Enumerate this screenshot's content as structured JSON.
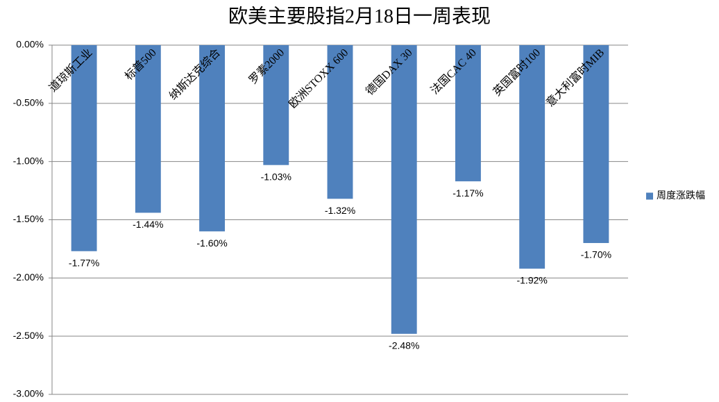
{
  "chart_data": {
    "type": "bar",
    "title": "欧美主要股指2月18日一周表现",
    "categories": [
      "道琼斯工业",
      "标普500",
      "纳斯达克综合",
      "罗素2000",
      "欧洲STOXX 600",
      "德国DAX 30",
      "法国CAC 40",
      "英国富时100",
      "意大利富时MIB"
    ],
    "series": [
      {
        "name": "周度涨跌幅",
        "color": "#4f81bd",
        "values": [
          -1.77,
          -1.44,
          -1.6,
          -1.03,
          -1.32,
          -2.48,
          -1.17,
          -1.92,
          -1.7
        ],
        "value_labels": [
          "-1.77%",
          "-1.44%",
          "-1.60%",
          "-1.03%",
          "-1.32%",
          "-2.48%",
          "-1.17%",
          "-1.92%",
          "-1.70%"
        ]
      }
    ],
    "ylim": [
      -3,
      0
    ],
    "yticks": [
      {
        "value": 0,
        "label": "0.00%"
      },
      {
        "value": -0.5,
        "label": "-0.50%"
      },
      {
        "value": -1,
        "label": "-1.00%"
      },
      {
        "value": -1.5,
        "label": "-1.50%"
      },
      {
        "value": -2,
        "label": "-2.00%"
      },
      {
        "value": -2.5,
        "label": "-2.50%"
      },
      {
        "value": -3,
        "label": "-3.00%"
      }
    ],
    "grid": true,
    "legend": "right"
  }
}
